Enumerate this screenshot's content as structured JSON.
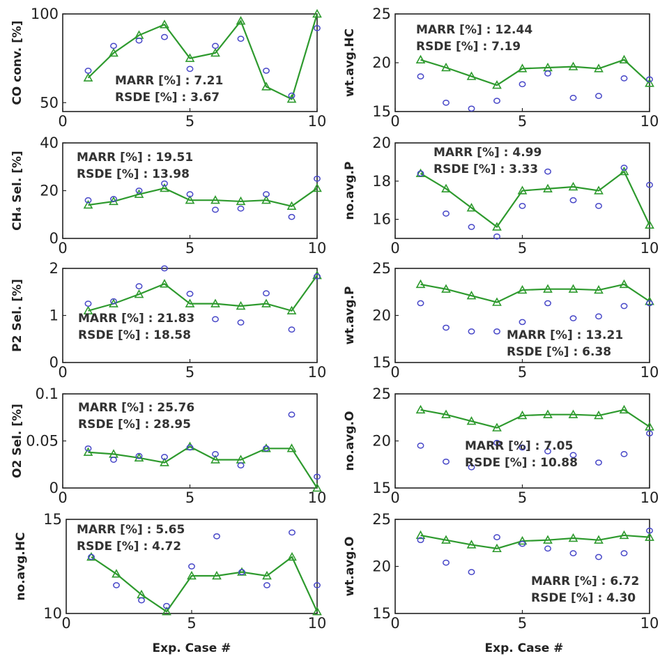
{
  "figure": {
    "xlabel": "Exp. Case #"
  },
  "colors": {
    "predicted": "#2e9a2e",
    "measured": "#4848c8"
  },
  "chart_data": [
    {
      "type": "line",
      "ylabel": "CO conv. [%]",
      "xlim": [
        0,
        10
      ],
      "ylim": [
        45,
        100
      ],
      "xticks": [
        "0",
        "5",
        "10"
      ],
      "yticks": [
        "50",
        "100"
      ],
      "ytick_values": [
        50,
        100
      ],
      "annotation": [
        "MARR [%] : 7.21",
        "RSDE [%] : 3.67"
      ],
      "series": [
        {
          "marker": "triangle",
          "x": [
            1,
            2,
            3,
            4,
            5,
            6,
            7,
            8,
            9,
            10
          ],
          "y": [
            64,
            78,
            88,
            94,
            75,
            78,
            96,
            59,
            52,
            100
          ]
        },
        {
          "marker": "circle",
          "x": [
            1,
            2,
            3,
            4,
            5,
            6,
            7,
            8,
            9,
            10
          ],
          "y": [
            68,
            82,
            85,
            87,
            69,
            82,
            86,
            68,
            54,
            92
          ]
        }
      ]
    },
    {
      "type": "line",
      "ylabel": "wt.avg.HC",
      "xlim": [
        0,
        10
      ],
      "ylim": [
        15,
        25
      ],
      "xticks": [
        "0",
        "5",
        "10"
      ],
      "yticks": [
        "15",
        "20",
        "25"
      ],
      "ytick_values": [
        15,
        20,
        25
      ],
      "annotation": [
        "MARR [%] : 12.44",
        "RSDE [%] : 7.19"
      ],
      "series": [
        {
          "marker": "triangle",
          "x": [
            1,
            2,
            3,
            4,
            5,
            6,
            7,
            8,
            9,
            10
          ],
          "y": [
            20.3,
            19.5,
            18.6,
            17.7,
            19.4,
            19.5,
            19.6,
            19.4,
            20.3,
            17.9
          ]
        },
        {
          "marker": "circle",
          "x": [
            1,
            2,
            3,
            4,
            5,
            6,
            7,
            8,
            9,
            10
          ],
          "y": [
            18.6,
            15.9,
            15.3,
            16.1,
            17.8,
            18.9,
            16.4,
            16.6,
            18.4,
            18.3
          ]
        }
      ]
    },
    {
      "type": "line",
      "ylabel": "CH₄ Sel. [%]",
      "xlim": [
        0,
        10
      ],
      "ylim": [
        0,
        40
      ],
      "xticks": [
        "0",
        "5",
        "10"
      ],
      "yticks": [
        "0",
        "20",
        "40"
      ],
      "ytick_values": [
        0,
        20,
        40
      ],
      "annotation": [
        "MARR [%] : 19.51",
        "RSDE [%] : 13.98"
      ],
      "series": [
        {
          "marker": "triangle",
          "x": [
            1,
            2,
            3,
            4,
            5,
            6,
            7,
            8,
            9,
            10
          ],
          "y": [
            14,
            15.5,
            18.5,
            21,
            16,
            16,
            15.5,
            16,
            13.5,
            21
          ]
        },
        {
          "marker": "circle",
          "x": [
            1,
            2,
            3,
            4,
            5,
            6,
            7,
            8,
            9,
            10
          ],
          "y": [
            16,
            16.5,
            20,
            23,
            18.5,
            12,
            12.5,
            18.5,
            9,
            25
          ]
        }
      ]
    },
    {
      "type": "line",
      "ylabel": "no.avg.P",
      "xlim": [
        0,
        10
      ],
      "ylim": [
        15,
        20
      ],
      "xticks": [
        "0",
        "5",
        "10"
      ],
      "yticks": [
        "16",
        "18",
        "20"
      ],
      "ytick_values": [
        16,
        18,
        20
      ],
      "annotation": [
        "MARR [%] : 4.99",
        "RSDE [%] : 3.33"
      ],
      "series": [
        {
          "marker": "triangle",
          "x": [
            1,
            2,
            3,
            4,
            5,
            6,
            7,
            8,
            9,
            10
          ],
          "y": [
            18.4,
            17.6,
            16.6,
            15.6,
            17.5,
            17.6,
            17.7,
            17.5,
            18.5,
            15.7
          ]
        },
        {
          "marker": "circle",
          "x": [
            1,
            2,
            3,
            4,
            5,
            6,
            7,
            8,
            9,
            10
          ],
          "y": [
            18.4,
            16.3,
            15.6,
            15.1,
            16.7,
            18.5,
            17.0,
            16.7,
            18.7,
            17.8
          ]
        }
      ]
    },
    {
      "type": "line",
      "ylabel": "P2 Sel. [%]",
      "xlim": [
        0,
        10
      ],
      "ylim": [
        0,
        2
      ],
      "xticks": [
        "0",
        "5",
        "10"
      ],
      "yticks": [
        "0",
        "1",
        "2"
      ],
      "ytick_values": [
        0,
        1,
        2
      ],
      "annotation": [
        "MARR [%] : 21.83",
        "RSDE [%] : 18.58"
      ],
      "series": [
        {
          "marker": "triangle",
          "x": [
            1,
            2,
            3,
            4,
            5,
            6,
            7,
            8,
            9,
            10
          ],
          "y": [
            1.1,
            1.25,
            1.45,
            1.67,
            1.25,
            1.25,
            1.2,
            1.25,
            1.1,
            1.85
          ]
        },
        {
          "marker": "circle",
          "x": [
            1,
            2,
            3,
            4,
            5,
            6,
            7,
            8,
            9,
            10
          ],
          "y": [
            1.25,
            1.3,
            1.62,
            2.0,
            1.46,
            0.92,
            0.85,
            1.47,
            0.7,
            1.83
          ]
        }
      ]
    },
    {
      "type": "line",
      "ylabel": "wt.avg.P",
      "xlim": [
        0,
        10
      ],
      "ylim": [
        15,
        25
      ],
      "xticks": [
        "0",
        "5",
        "10"
      ],
      "yticks": [
        "15",
        "20",
        "25"
      ],
      "ytick_values": [
        15,
        20,
        25
      ],
      "annotation": [
        "MARR [%] : 13.21",
        "RSDE [%] : 6.38"
      ],
      "series": [
        {
          "marker": "triangle",
          "x": [
            1,
            2,
            3,
            4,
            5,
            6,
            7,
            8,
            9,
            10
          ],
          "y": [
            23.3,
            22.8,
            22.1,
            21.4,
            22.7,
            22.8,
            22.8,
            22.7,
            23.3,
            21.5
          ]
        },
        {
          "marker": "circle",
          "x": [
            1,
            2,
            3,
            4,
            5,
            6,
            7,
            8,
            9,
            10
          ],
          "y": [
            21.3,
            18.7,
            18.3,
            18.3,
            19.3,
            21.3,
            19.7,
            19.9,
            21.0,
            21.3
          ]
        }
      ]
    },
    {
      "type": "line",
      "ylabel": "O2 Sel. [%]",
      "xlim": [
        0,
        10
      ],
      "ylim": [
        0,
        0.1
      ],
      "xticks": [
        "0",
        "5",
        "10"
      ],
      "yticks": [
        "0",
        "0.05",
        "0.1"
      ],
      "ytick_values": [
        0,
        0.05,
        0.1
      ],
      "annotation": [
        "MARR [%] : 25.76",
        "RSDE [%] : 28.95"
      ],
      "series": [
        {
          "marker": "triangle",
          "x": [
            1,
            2,
            3,
            4,
            5,
            6,
            7,
            8,
            9,
            10
          ],
          "y": [
            0.038,
            0.036,
            0.032,
            0.027,
            0.044,
            0.03,
            0.03,
            0.042,
            0.042,
            0.0
          ]
        },
        {
          "marker": "circle",
          "x": [
            1,
            2,
            3,
            4,
            5,
            6,
            7,
            8,
            9,
            10
          ],
          "y": [
            0.042,
            0.03,
            0.034,
            0.033,
            0.043,
            0.036,
            0.024,
            0.042,
            0.078,
            0.012
          ]
        }
      ]
    },
    {
      "type": "line",
      "ylabel": "no.avg.O",
      "xlim": [
        0,
        10
      ],
      "ylim": [
        15,
        25
      ],
      "xticks": [
        "0",
        "5",
        "10"
      ],
      "yticks": [
        "15",
        "20",
        "25"
      ],
      "ytick_values": [
        15,
        20,
        25
      ],
      "annotation": [
        "MARR [%] : 7.05",
        "RSDE [%] : 10.88"
      ],
      "series": [
        {
          "marker": "triangle",
          "x": [
            1,
            2,
            3,
            4,
            5,
            6,
            7,
            8,
            9,
            10
          ],
          "y": [
            23.3,
            22.8,
            22.1,
            21.4,
            22.7,
            22.8,
            22.8,
            22.7,
            23.3,
            21.5
          ]
        },
        {
          "marker": "circle",
          "x": [
            1,
            2,
            3,
            4,
            5,
            6,
            7,
            8,
            9,
            10
          ],
          "y": [
            19.5,
            17.8,
            17.2,
            19.8,
            19.3,
            18.9,
            18.5,
            17.7,
            18.6,
            20.8
          ]
        }
      ]
    },
    {
      "type": "line",
      "ylabel": "no.avg.HC",
      "xlim": [
        0,
        10
      ],
      "ylim": [
        10,
        15
      ],
      "xticks": [
        "0",
        "5",
        "10"
      ],
      "yticks": [
        "10",
        "15"
      ],
      "ytick_values": [
        10,
        15
      ],
      "annotation": [
        "MARR [%] : 5.65",
        "RSDE [%] : 4.72"
      ],
      "series": [
        {
          "marker": "triangle",
          "x": [
            1,
            2,
            3,
            4,
            5,
            6,
            7,
            8,
            9,
            10
          ],
          "y": [
            13.0,
            12.1,
            11.0,
            10.1,
            12.0,
            12.0,
            12.2,
            12.0,
            13.0,
            10.1
          ]
        },
        {
          "marker": "circle",
          "x": [
            1,
            2,
            3,
            4,
            5,
            6,
            7,
            8,
            9,
            10
          ],
          "y": [
            13.0,
            11.5,
            10.7,
            10.4,
            12.5,
            14.1,
            12.2,
            11.5,
            14.3,
            11.5
          ]
        }
      ]
    },
    {
      "type": "line",
      "ylabel": "wt.avg.O",
      "xlim": [
        0,
        10
      ],
      "ylim": [
        15,
        25
      ],
      "xticks": [
        "0",
        "5",
        "10"
      ],
      "yticks": [
        "15",
        "20",
        "25"
      ],
      "ytick_values": [
        15,
        20,
        25
      ],
      "annotation": [
        "MARR [%] : 6.72",
        "RSDE [%] : 4.30"
      ],
      "series": [
        {
          "marker": "triangle",
          "x": [
            1,
            2,
            3,
            4,
            5,
            6,
            7,
            8,
            9,
            10
          ],
          "y": [
            23.3,
            22.8,
            22.3,
            21.9,
            22.7,
            22.8,
            23.0,
            22.8,
            23.3,
            23.1
          ]
        },
        {
          "marker": "circle",
          "x": [
            1,
            2,
            3,
            4,
            5,
            6,
            7,
            8,
            9,
            10
          ],
          "y": [
            22.8,
            20.4,
            19.4,
            23.1,
            22.4,
            21.9,
            21.4,
            21.0,
            21.4,
            23.8
          ]
        }
      ]
    }
  ]
}
